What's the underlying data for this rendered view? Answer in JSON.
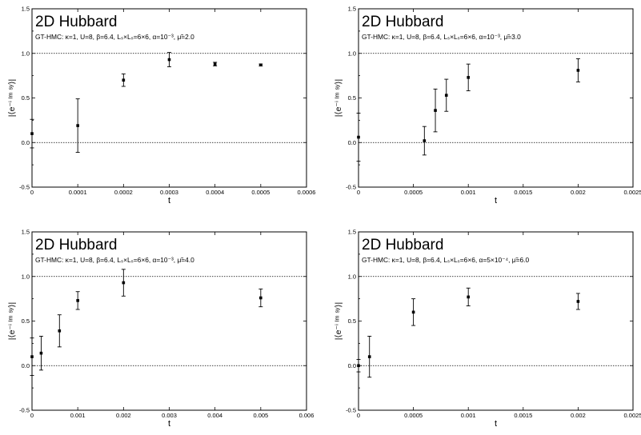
{
  "chart_data": [
    {
      "type": "scatter",
      "title": "2D Hubbard",
      "subtitle": "GT-HMC: κ=1, U=8, β=6.4, Lₛ×Lₛ=6×6, α=10⁻³, μ̃=2.0",
      "xlabel": "t",
      "ylabel": "|⟨e⁻ⁱ ᴵᵐ ˢʸ⟩|",
      "xlim": [
        0,
        0.0006
      ],
      "ylim": [
        -0.5,
        1.5
      ],
      "xticks": [
        "0",
        "0.0001",
        "0.0002",
        "0.0003",
        "0.0004",
        "0.0005",
        "0.0006"
      ],
      "yticks": [
        "-0.5",
        "0.0",
        "0.5",
        "1.0",
        "1.5"
      ],
      "points": [
        {
          "x": 0,
          "y": 0.1,
          "err": 0.16
        },
        {
          "x": 0.0001,
          "y": 0.19,
          "err": 0.3
        },
        {
          "x": 0.0002,
          "y": 0.7,
          "err": 0.07
        },
        {
          "x": 0.0003,
          "y": 0.93,
          "err": 0.08
        },
        {
          "x": 0.0004,
          "y": 0.88,
          "err": 0.02
        },
        {
          "x": 0.0005,
          "y": 0.87,
          "err": 0.01
        }
      ]
    },
    {
      "type": "scatter",
      "title": "2D Hubbard",
      "subtitle": "GT-HMC: κ=1, U=8, β=6.4, Lₛ×Lₛ=6×6, α=10⁻³, μ̃=3.0",
      "xlabel": "t",
      "ylabel": "|⟨e⁻ⁱ ᴵᵐ ˢʸ⟩|",
      "xlim": [
        0,
        0.0025
      ],
      "ylim": [
        -0.5,
        1.5
      ],
      "xticks": [
        "0",
        "0.0005",
        "0.001",
        "0.0015",
        "0.002",
        "0.0025"
      ],
      "yticks": [
        "-0.5",
        "0.0",
        "0.5",
        "1.0",
        "1.5"
      ],
      "points": [
        {
          "x": 0,
          "y": 0.06,
          "err": 0.27
        },
        {
          "x": 0.0006,
          "y": 0.02,
          "err": 0.16
        },
        {
          "x": 0.0007,
          "y": 0.36,
          "err": 0.24
        },
        {
          "x": 0.0008,
          "y": 0.53,
          "err": 0.18
        },
        {
          "x": 0.001,
          "y": 0.73,
          "err": 0.15
        },
        {
          "x": 0.002,
          "y": 0.81,
          "err": 0.13
        }
      ]
    },
    {
      "type": "scatter",
      "title": "2D Hubbard",
      "subtitle": "GT-HMC: κ=1, U=8, β=6.4, Lₛ×Lₛ=6×6, α=10⁻³, μ̃=4.0",
      "xlabel": "t",
      "ylabel": "|⟨e⁻ⁱ ᴵᵐ ˢʸ⟩|",
      "xlim": [
        0,
        0.006
      ],
      "ylim": [
        -0.5,
        1.5
      ],
      "xticks": [
        "0",
        "0.001",
        "0.002",
        "0.003",
        "0.004",
        "0.005",
        "0.006"
      ],
      "yticks": [
        "-0.5",
        "0.0",
        "0.5",
        "1.0",
        "1.5"
      ],
      "points": [
        {
          "x": 0,
          "y": 0.1,
          "err": 0.21
        },
        {
          "x": 0.0002,
          "y": 0.14,
          "err": 0.19
        },
        {
          "x": 0.0006,
          "y": 0.39,
          "err": 0.18
        },
        {
          "x": 0.001,
          "y": 0.73,
          "err": 0.1
        },
        {
          "x": 0.002,
          "y": 0.93,
          "err": 0.15
        },
        {
          "x": 0.005,
          "y": 0.76,
          "err": 0.1
        }
      ]
    },
    {
      "type": "scatter",
      "title": "2D Hubbard",
      "subtitle": "GT-HMC: κ=1, U=8, β=6.4, Lₛ×Lₛ=6×6, α=5×10⁻⁴, μ̃=6.0",
      "xlabel": "t",
      "ylabel": "|⟨e⁻ⁱ ᴵᵐ ˢʸ⟩|",
      "xlim": [
        0,
        0.0025
      ],
      "ylim": [
        -0.5,
        1.5
      ],
      "xticks": [
        "0",
        "0.0005",
        "0.001",
        "0.0015",
        "0.002",
        "0.0025"
      ],
      "yticks": [
        "-0.5",
        "0.0",
        "0.5",
        "1.0",
        "1.5"
      ],
      "points": [
        {
          "x": 0,
          "y": 0.0,
          "err": 0.07
        },
        {
          "x": 0.0001,
          "y": 0.1,
          "err": 0.23
        },
        {
          "x": 0.0005,
          "y": 0.6,
          "err": 0.15
        },
        {
          "x": 0.001,
          "y": 0.77,
          "err": 0.1
        },
        {
          "x": 0.002,
          "y": 0.72,
          "err": 0.09
        }
      ]
    }
  ]
}
